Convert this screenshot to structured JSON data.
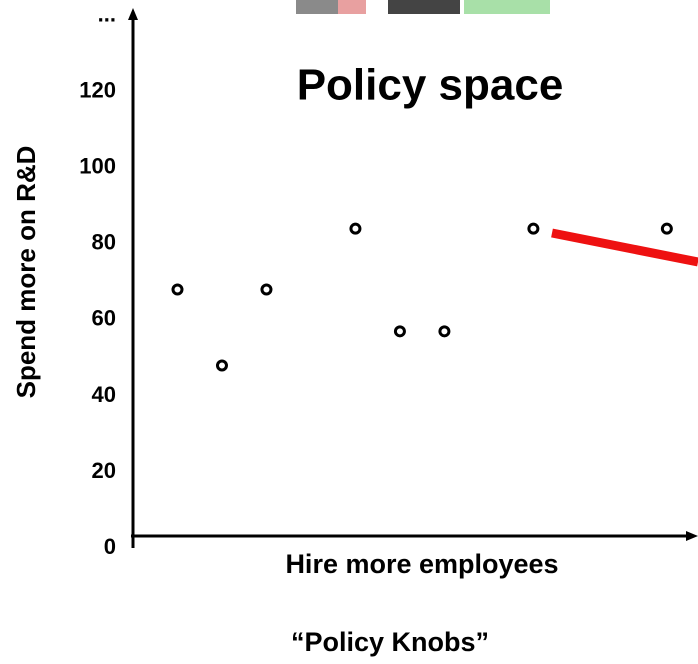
{
  "chart_data": {
    "type": "scatter",
    "title": "Policy space",
    "x_label": "Hire more employees",
    "y_label": "Spend more on R&D",
    "caption": "“Policy Knobs”",
    "x": [
      1,
      2,
      3,
      5,
      6,
      7,
      9,
      12
    ],
    "values": [
      68,
      48,
      68,
      84,
      57,
      57,
      84,
      84
    ],
    "color": "#000000",
    "xlim": [
      0,
      12.7
    ],
    "ylim": [
      0,
      141
    ],
    "yticks": [
      0,
      20,
      40,
      60,
      80,
      100,
      120,
      {
        "value": 140,
        "label": "..."
      }
    ]
  }
}
